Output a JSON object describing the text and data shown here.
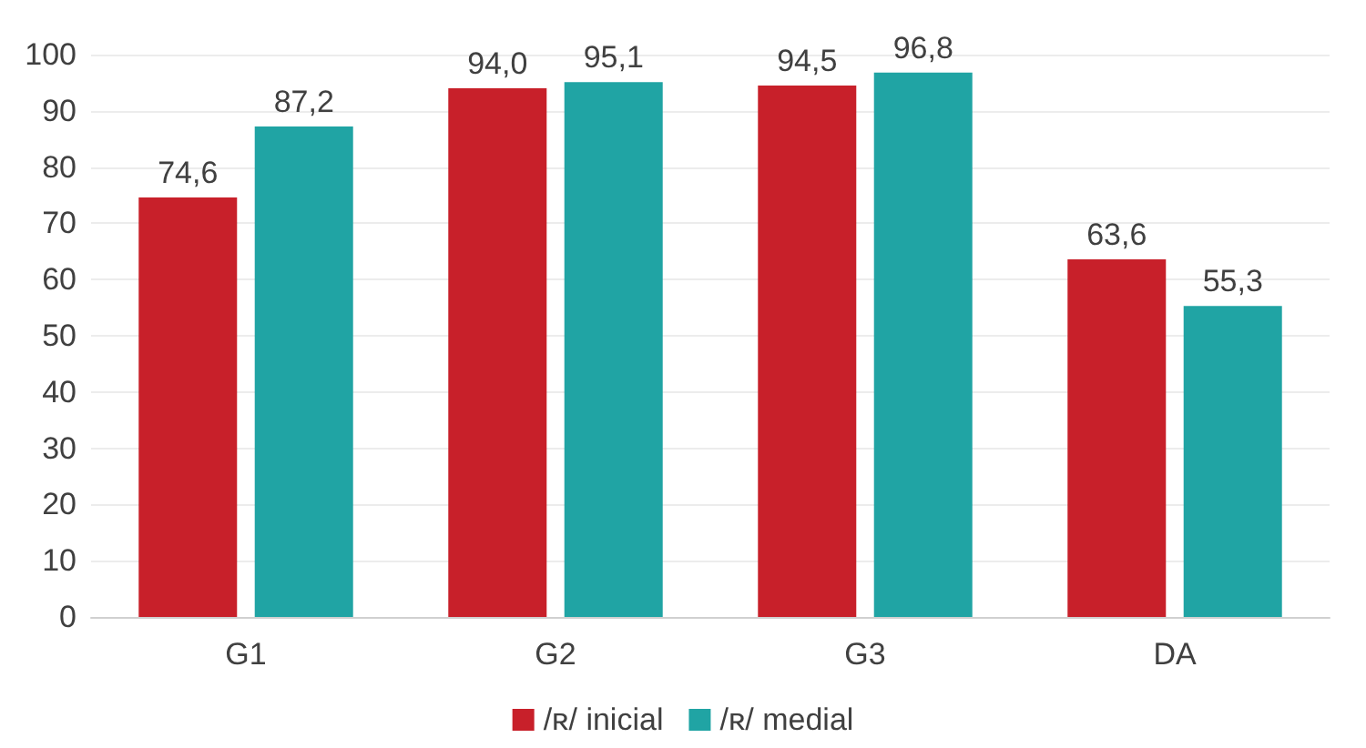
{
  "chart_data": {
    "type": "bar",
    "categories": [
      "G1",
      "G2",
      "G3",
      "DA"
    ],
    "series": [
      {
        "name": "/ʀ/ inicial",
        "color": "#c8202a",
        "values": [
          74.6,
          94.0,
          94.5,
          63.6
        ],
        "value_labels": [
          "74,6",
          "94,0",
          "94,5",
          "63,6"
        ]
      },
      {
        "name": "/ʀ/ medial",
        "color": "#20a4a4",
        "values": [
          87.2,
          95.1,
          96.8,
          55.3
        ],
        "value_labels": [
          "87,2",
          "95,1",
          "96,8",
          "55,3"
        ]
      }
    ],
    "ylim": [
      0,
      100
    ],
    "yticks": [
      0,
      10,
      20,
      30,
      40,
      50,
      60,
      70,
      80,
      90,
      100
    ],
    "grid": "y",
    "legend": "bottom"
  }
}
